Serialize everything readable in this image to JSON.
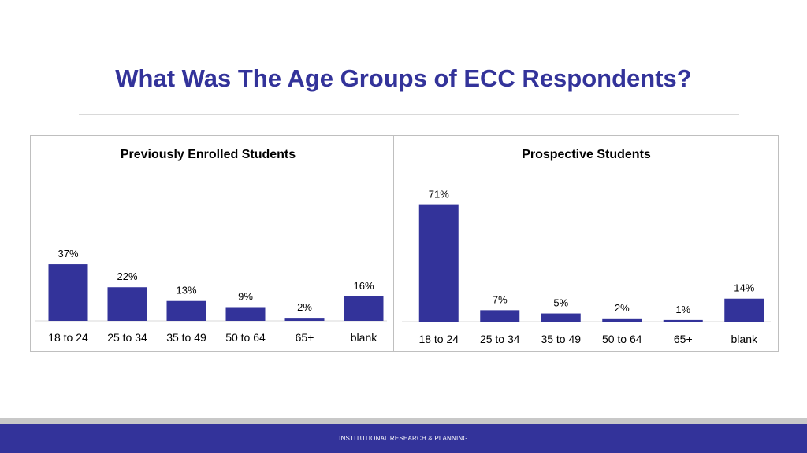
{
  "slide": {
    "title": "What Was The Age Groups of ECC Respondents?",
    "footer": "INSTITUTIONAL RESEARCH & PLANNING",
    "colors": {
      "accent": "#33339a",
      "bar": "#33339a"
    }
  },
  "chart_data": [
    {
      "type": "bar",
      "title": "Previously Enrolled Students",
      "categories": [
        "18 to 24",
        "25 to 34",
        "35 to 49",
        "50 to 64",
        "65+",
        "blank"
      ],
      "values": [
        37,
        22,
        13,
        9,
        2,
        16
      ],
      "labels": [
        "37%",
        "22%",
        "13%",
        "9%",
        "2%",
        "16%"
      ],
      "unit": "%",
      "ylim": [
        0,
        75
      ],
      "grid": false
    },
    {
      "type": "bar",
      "title": "Prospective Students",
      "categories": [
        "18 to 24",
        "25 to 34",
        "35 to 49",
        "50 to 64",
        "65+",
        "blank"
      ],
      "values": [
        71,
        7,
        5,
        2,
        1,
        14
      ],
      "labels": [
        "71%",
        "7%",
        "5%",
        "2%",
        "1%",
        "14%"
      ],
      "unit": "%",
      "ylim": [
        0,
        75
      ],
      "grid": false
    }
  ]
}
